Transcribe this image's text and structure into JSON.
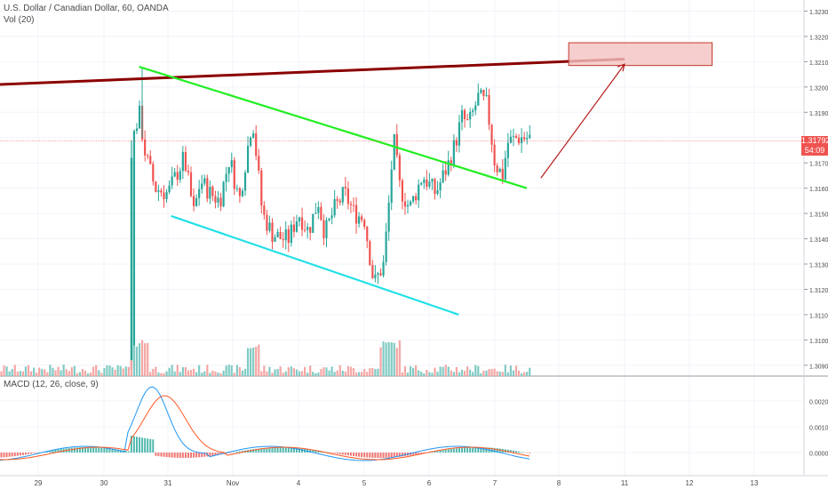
{
  "header": {
    "symbol_line": "U.S. Dollar / Canadian Dollar, 60, OANDA",
    "volume_label": "Vol (20)",
    "macd_label": "MACD (12, 26, close, 9)"
  },
  "price_axis": {
    "ticks": [
      "1.32300",
      "1.32200",
      "1.32100",
      "1.32000",
      "1.31900",
      "1.31800",
      "1.31700",
      "1.31600",
      "1.31500",
      "1.31400",
      "1.31300",
      "1.31200",
      "1.31100",
      "1.31000",
      "1.30900"
    ],
    "current_price": "1.31792",
    "countdown": "54:09"
  },
  "macd_axis": {
    "ticks": [
      "0.00200",
      "0.00100",
      "0.00000"
    ]
  },
  "time_axis": {
    "ticks": [
      "29",
      "30",
      "31",
      "Nov",
      "4",
      "5",
      "6",
      "7",
      "8",
      "11",
      "12",
      "13"
    ]
  },
  "colors": {
    "up": "#26a69a",
    "down": "#ef5350",
    "vol_up": "#80cbc4",
    "vol_down": "#f4a6a4",
    "resistance": "#8b0000",
    "channel_top": "#22ee22",
    "channel_bottom": "#22e0e8",
    "target_box_fill": "#f4c2c2",
    "target_box_stroke": "#c0392b",
    "macd_line": "#2196f3",
    "signal_line": "#ff5722"
  },
  "chart_data": {
    "type": "candlestick",
    "title": "U.S. Dollar / Canadian Dollar, 60, OANDA",
    "ylim": [
      1.30875,
      1.32335
    ],
    "x_categories": [
      "29",
      "30",
      "31",
      "Nov",
      "4",
      "5",
      "6",
      "7",
      "8",
      "11",
      "12",
      "13"
    ],
    "key_prices": [
      {
        "label": "range_open_spike_high",
        "value": 1.3208
      },
      {
        "label": "channel_low",
        "value": 1.3119
      },
      {
        "label": "recent_high",
        "value": 1.31965
      },
      {
        "label": "current",
        "value": 1.31792
      }
    ],
    "overlays": [
      {
        "name": "resistance_line",
        "from": [
          1.3201,
          "before 29"
        ],
        "to": [
          1.3211,
          "between 8 and 11"
        ]
      },
      {
        "name": "falling_channel_top",
        "from": [
          1.3208,
          "30"
        ],
        "to": [
          1.316,
          "7"
        ]
      },
      {
        "name": "falling_channel_bottom",
        "from": [
          1.3149,
          "31"
        ],
        "to": [
          1.311,
          "6"
        ]
      },
      {
        "name": "target_zone",
        "price_from": 1.32085,
        "price_to": 1.32175,
        "time_from": "8",
        "time_to": "12"
      }
    ],
    "macd": {
      "ylim": [
        -0.0004,
        0.003
      ],
      "peak": 0.0024,
      "current": 0.0
    }
  }
}
